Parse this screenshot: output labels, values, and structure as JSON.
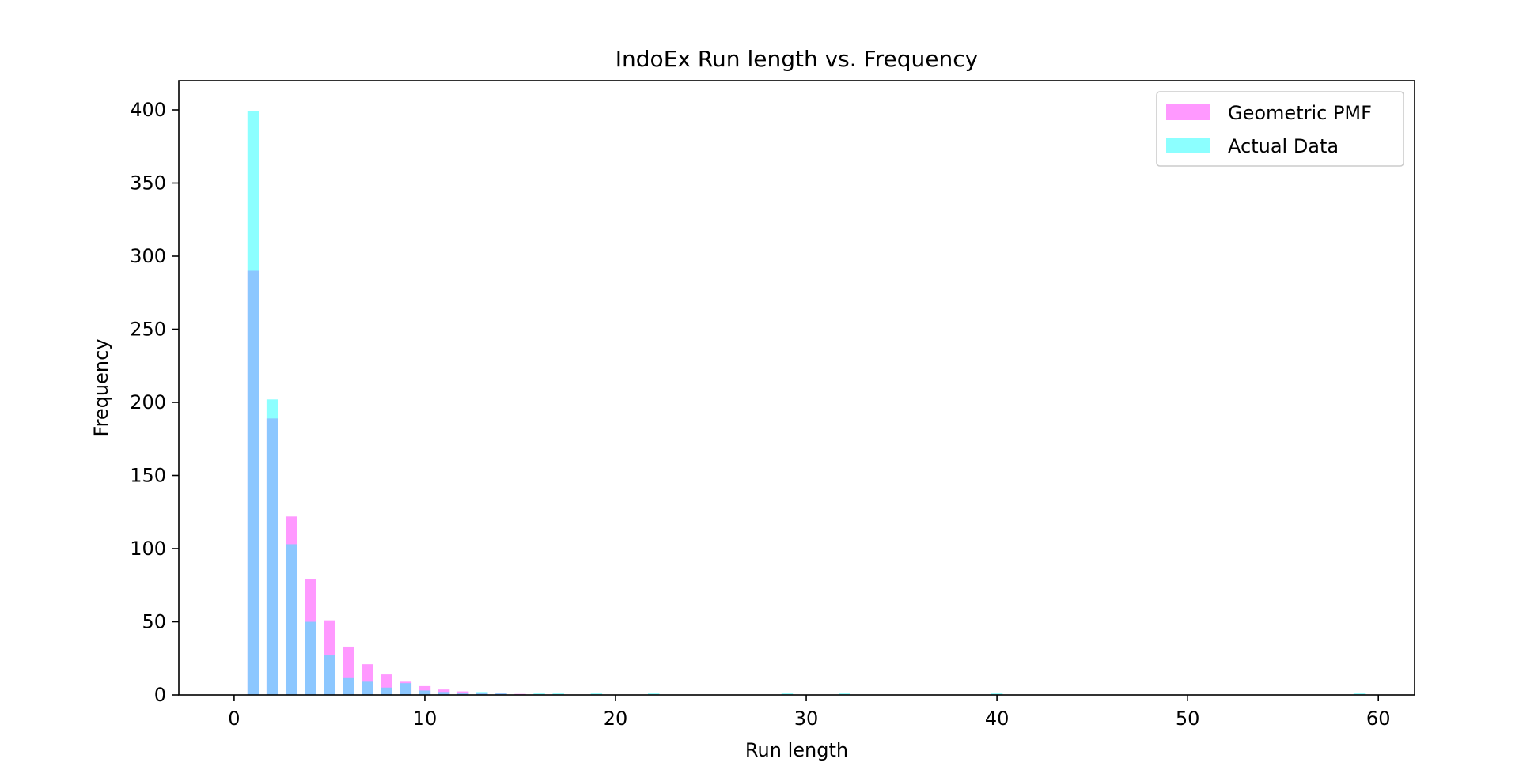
{
  "chart_data": {
    "type": "bar",
    "title": "IndoEx Run length vs. Frequency",
    "xlabel": "Run length",
    "ylabel": "Frequency",
    "xlim": [
      -2.9,
      61.9
    ],
    "ylim": [
      0,
      420
    ],
    "xticks": [
      0,
      10,
      20,
      30,
      40,
      50,
      60
    ],
    "yticks": [
      0,
      50,
      100,
      150,
      200,
      250,
      300,
      350,
      400
    ],
    "grid": false,
    "legend_position": "top-right",
    "bar_width": 0.6,
    "series": [
      {
        "name": "Geometric PMF",
        "color": "#ff00ff",
        "alpha": 0.4,
        "x": [
          1,
          2,
          3,
          4,
          5,
          6,
          7,
          8,
          9,
          10,
          11,
          12,
          13,
          14,
          15
        ],
        "values": [
          290,
          189,
          122,
          79,
          51,
          33,
          21,
          14,
          9,
          6,
          3.7,
          2.4,
          1.6,
          1.0,
          0.7
        ]
      },
      {
        "name": "Actual Data",
        "color": "#00ffff",
        "alpha": 0.45,
        "x": [
          1,
          2,
          3,
          4,
          5,
          6,
          7,
          8,
          9,
          10,
          11,
          12,
          13,
          14,
          16,
          17,
          19,
          22,
          29,
          32,
          40,
          59
        ],
        "values": [
          399,
          202,
          103,
          50,
          27,
          12,
          9,
          5,
          8,
          3,
          2,
          1,
          2,
          1,
          1,
          1,
          1,
          1,
          1,
          1,
          1,
          1
        ]
      }
    ]
  }
}
